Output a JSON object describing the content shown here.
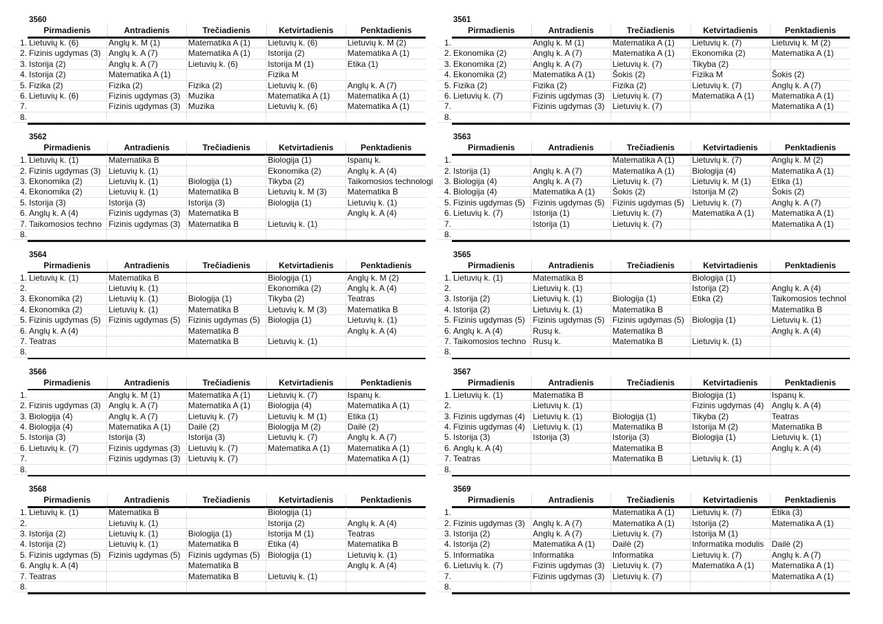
{
  "days": [
    "Pirmadienis",
    "Antradienis",
    "Trečiadienis",
    "Ketvirtadienis",
    "Penktadienis"
  ],
  "row_numbers": [
    "1.",
    "2.",
    "3.",
    "4.",
    "5.",
    "6.",
    "7.",
    "8."
  ],
  "timetables": [
    {
      "class": "3560",
      "rows": [
        [
          "Lietuvių k. (6)",
          "Anglų k. M (1)",
          "Matematika A (1)",
          "Lietuvių k. (6)",
          "Lietuvių k. M (2)"
        ],
        [
          "Fizinis ugdymas (3)",
          "Anglų k. A (7)",
          "Matematika A (1)",
          "Istorija (2)",
          "Matematika A (1)"
        ],
        [
          "Istorija (2)",
          "Anglų k. A (7)",
          "Lietuvių k. (6)",
          "Istorija M (1)",
          "Etika (1)"
        ],
        [
          "Istorija (2)",
          "Matematika A (1)",
          "",
          "Fizika M",
          ""
        ],
        [
          "Fizika (2)",
          "Fizika (2)",
          "Fizika (2)",
          "Lietuvių k. (6)",
          "Anglų k. A (7)"
        ],
        [
          "Lietuvių k. (6)",
          "Fizinis ugdymas (3)",
          "Muzika",
          "Matematika A (1)",
          "Matematika A (1)"
        ],
        [
          "",
          "Fizinis ugdymas (3)",
          "Muzika",
          "Lietuvių k. (6)",
          "Matematika A (1)"
        ],
        [
          "",
          "",
          "",
          "",
          ""
        ]
      ]
    },
    {
      "class": "3561",
      "rows": [
        [
          "",
          "Anglų k. M (1)",
          "Matematika A (1)",
          "Lietuvių k. (7)",
          "Lietuvių k. M (2)"
        ],
        [
          "Ekonomika (2)",
          "Anglų k. A (7)",
          "Matematika A (1)",
          "Ekonomika (2)",
          "Matematika A (1)"
        ],
        [
          "Ekonomika (2)",
          "Anglų k. A (7)",
          "Lietuvių k. (7)",
          "Tikyba (2)",
          ""
        ],
        [
          "Ekonomika (2)",
          "Matematika A (1)",
          "Šokis (2)",
          "Fizika M",
          "Šokis (2)"
        ],
        [
          "Fizika (2)",
          "Fizika (2)",
          "Fizika (2)",
          "Lietuvių k. (7)",
          "Anglų k. A (7)"
        ],
        [
          "Lietuvių k. (7)",
          "Fizinis ugdymas (3)",
          "Lietuvių k. (7)",
          "Matematika A (1)",
          "Matematika A (1)"
        ],
        [
          "",
          "Fizinis ugdymas (3)",
          "Lietuvių k. (7)",
          "",
          "Matematika A (1)"
        ],
        [
          "",
          "",
          "",
          "",
          ""
        ]
      ]
    },
    {
      "class": "3562",
      "rows": [
        [
          "Lietuvių k. (1)",
          "Matematika B",
          "",
          "Biologija (1)",
          "Ispanų k."
        ],
        [
          "Fizinis ugdymas (3)",
          "Lietuvių k. (1)",
          "",
          "Ekonomika (2)",
          "Anglų k. A (4)"
        ],
        [
          "Ekonomika (2)",
          "Lietuvių k. (1)",
          "Biologija (1)",
          "Tikyba (2)",
          "Taikomosios technologi"
        ],
        [
          "Ekonomika (2)",
          "Lietuvių k. (1)",
          "Matematika B",
          "Lietuvių k. M (3)",
          "Matematika B"
        ],
        [
          "Istorija (3)",
          "Istorija (3)",
          "Istorija (3)",
          "Biologija (1)",
          "Lietuvių k. (1)"
        ],
        [
          "Anglų k. A (4)",
          "Fizinis ugdymas (3)",
          "Matematika B",
          "",
          "Anglų k. A (4)"
        ],
        [
          "Taikomosios techno",
          "Fizinis ugdymas (3)",
          "Matematika B",
          "Lietuvių k. (1)",
          ""
        ],
        [
          "",
          "",
          "",
          "",
          ""
        ]
      ]
    },
    {
      "class": "3563",
      "rows": [
        [
          "",
          "",
          "Matematika A (1)",
          "Lietuvių k. (7)",
          "Anglų k. M (2)"
        ],
        [
          "Istorija (1)",
          "Anglų k. A (7)",
          "Matematika A (1)",
          "Biologija (4)",
          "Matematika A (1)"
        ],
        [
          "Biologija (4)",
          "Anglų k. A (7)",
          "Lietuvių k. (7)",
          "Lietuvių k. M (1)",
          "Etika (1)"
        ],
        [
          "Biologija (4)",
          "Matematika A (1)",
          "Šokis (2)",
          "Istorija M (2)",
          "Šokis (2)"
        ],
        [
          "Fizinis ugdymas (5)",
          "Fizinis ugdymas (5)",
          "Fizinis ugdymas (5)",
          "Lietuvių k. (7)",
          "Anglų k. A (7)"
        ],
        [
          "Lietuvių k. (7)",
          "Istorija (1)",
          "Lietuvių k. (7)",
          "Matematika A (1)",
          "Matematika A (1)"
        ],
        [
          "",
          "Istorija (1)",
          "Lietuvių k. (7)",
          "",
          "Matematika A (1)"
        ],
        [
          "",
          "",
          "",
          "",
          ""
        ]
      ]
    },
    {
      "class": "3564",
      "rows": [
        [
          "Lietuvių k. (1)",
          "Matematika B",
          "",
          "Biologija (1)",
          "Anglų k. M (2)"
        ],
        [
          "",
          "Lietuvių k. (1)",
          "",
          "Ekonomika (2)",
          "Anglų k. A (4)"
        ],
        [
          "Ekonomika (2)",
          "Lietuvių k. (1)",
          "Biologija (1)",
          "Tikyba (2)",
          "Teatras"
        ],
        [
          "Ekonomika (2)",
          "Lietuvių k. (1)",
          "Matematika B",
          "Lietuvių k. M (3)",
          "Matematika B"
        ],
        [
          "Fizinis ugdymas (5)",
          "Fizinis ugdymas (5)",
          "Fizinis ugdymas (5)",
          "Biologija (1)",
          "Lietuvių k. (1)"
        ],
        [
          "Anglų k. A (4)",
          "",
          "Matematika B",
          "",
          "Anglų k. A (4)"
        ],
        [
          "Teatras",
          "",
          "Matematika B",
          "Lietuvių k. (1)",
          ""
        ],
        [
          "",
          "",
          "",
          "",
          ""
        ]
      ]
    },
    {
      "class": "3565",
      "rows": [
        [
          "Lietuvių k. (1)",
          "Matematika B",
          "",
          "Biologija (1)",
          ""
        ],
        [
          "",
          "Lietuvių k. (1)",
          "",
          "Istorija (2)",
          "Anglų k. A (4)"
        ],
        [
          "Istorija (2)",
          "Lietuvių k. (1)",
          "Biologija (1)",
          "Etika (2)",
          "Taikomosios technol"
        ],
        [
          "Istorija (2)",
          "Lietuvių k. (1)",
          "Matematika B",
          "",
          "Matematika B"
        ],
        [
          "Fizinis ugdymas (5)",
          "Fizinis ugdymas (5)",
          "Fizinis ugdymas (5)",
          "Biologija (1)",
          "Lietuvių k. (1)"
        ],
        [
          "Anglų k. A (4)",
          "Rusų k.",
          "Matematika B",
          "",
          "Anglų k. A (4)"
        ],
        [
          "Taikomosios techno",
          "Rusų k.",
          "Matematika B",
          "Lietuvių k. (1)",
          ""
        ],
        [
          "",
          "",
          "",
          "",
          ""
        ]
      ]
    },
    {
      "class": "3566",
      "rows": [
        [
          "",
          "Anglų k. M (1)",
          "Matematika A (1)",
          "Lietuvių k. (7)",
          "Ispanų k."
        ],
        [
          "Fizinis ugdymas (3)",
          "Anglų k. A (7)",
          "Matematika A (1)",
          "Biologija (4)",
          "Matematika A (1)"
        ],
        [
          "Biologija (4)",
          "Anglų k. A (7)",
          "Lietuvių k. (7)",
          "Lietuvių k. M (1)",
          "Etika (1)"
        ],
        [
          "Biologija (4)",
          "Matematika A (1)",
          "Dailė (2)",
          "Biologija M (2)",
          "Dailė (2)"
        ],
        [
          "Istorija (3)",
          "Istorija (3)",
          "Istorija (3)",
          "Lietuvių k. (7)",
          "Anglų k. A (7)"
        ],
        [
          "Lietuvių k. (7)",
          "Fizinis ugdymas (3)",
          "Lietuvių k. (7)",
          "Matematika A (1)",
          "Matematika A (1)"
        ],
        [
          "",
          "Fizinis ugdymas (3)",
          "Lietuvių k. (7)",
          "",
          "Matematika A (1)"
        ],
        [
          "",
          "",
          "",
          "",
          ""
        ]
      ]
    },
    {
      "class": "3567",
      "rows": [
        [
          "Lietuvių k. (1)",
          "Matematika B",
          "",
          "Biologija (1)",
          "Ispanų k."
        ],
        [
          "",
          "Lietuvių k. (1)",
          "",
          "Fizinis ugdymas (4)",
          "Anglų k. A (4)"
        ],
        [
          "Fizinis ugdymas (4)",
          "Lietuvių k. (1)",
          "Biologija (1)",
          "Tikyba (2)",
          "Teatras"
        ],
        [
          "Fizinis ugdymas (4)",
          "Lietuvių k. (1)",
          "Matematika B",
          "Istorija M (2)",
          "Matematika B"
        ],
        [
          "Istorija (3)",
          "Istorija (3)",
          "Istorija (3)",
          "Biologija (1)",
          "Lietuvių k. (1)"
        ],
        [
          "Anglų k. A (4)",
          "",
          "Matematika B",
          "",
          "Anglų k. A (4)"
        ],
        [
          "Teatras",
          "",
          "Matematika B",
          "Lietuvių k. (1)",
          ""
        ],
        [
          "",
          "",
          "",
          "",
          ""
        ]
      ]
    },
    {
      "class": "3568",
      "rows": [
        [
          "Lietuvių k. (1)",
          "Matematika B",
          "",
          "Biologija (1)",
          ""
        ],
        [
          "",
          "Lietuvių k. (1)",
          "",
          "Istorija (2)",
          "Anglų k. A (4)"
        ],
        [
          "Istorija (2)",
          "Lietuvių k. (1)",
          "Biologija (1)",
          "Istorija M (1)",
          "Teatras"
        ],
        [
          "Istorija (2)",
          "Lietuvių k. (1)",
          "Matematika B",
          "Etika (4)",
          "Matematika B"
        ],
        [
          "Fizinis ugdymas (5)",
          "Fizinis ugdymas (5)",
          "Fizinis ugdymas (5)",
          "Biologija (1)",
          "Lietuvių k. (1)"
        ],
        [
          "Anglų k. A (4)",
          "",
          "Matematika B",
          "",
          "Anglų k. A (4)"
        ],
        [
          "Teatras",
          "",
          "Matematika B",
          "Lietuvių k. (1)",
          ""
        ],
        [
          "",
          "",
          "",
          "",
          ""
        ]
      ]
    },
    {
      "class": "3569",
      "rows": [
        [
          "",
          "",
          "Matematika A (1)",
          "Lietuvių k. (7)",
          "Etika (3)"
        ],
        [
          "Fizinis ugdymas (3)",
          "Anglų k. A (7)",
          "Matematika A (1)",
          "Istorija (2)",
          "Matematika A (1)"
        ],
        [
          "Istorija (2)",
          "Anglų k. A (7)",
          "Lietuvių k. (7)",
          "Istorija M (1)",
          ""
        ],
        [
          "Istorija (2)",
          "Matematika A (1)",
          "Dailė (2)",
          "Informatika modulis",
          "Dailė (2)"
        ],
        [
          "Informatika",
          "Informatika",
          "Informatika",
          "Lietuvių k. (7)",
          "Anglų k. A (7)"
        ],
        [
          "Lietuvių k. (7)",
          "Fizinis ugdymas (3)",
          "Lietuvių k. (7)",
          "Matematika A (1)",
          "Matematika A (1)"
        ],
        [
          "",
          "Fizinis ugdymas (3)",
          "Lietuvių k. (7)",
          "",
          "Matematika A (1)"
        ],
        [
          "",
          "",
          "",
          "",
          ""
        ]
      ]
    }
  ]
}
